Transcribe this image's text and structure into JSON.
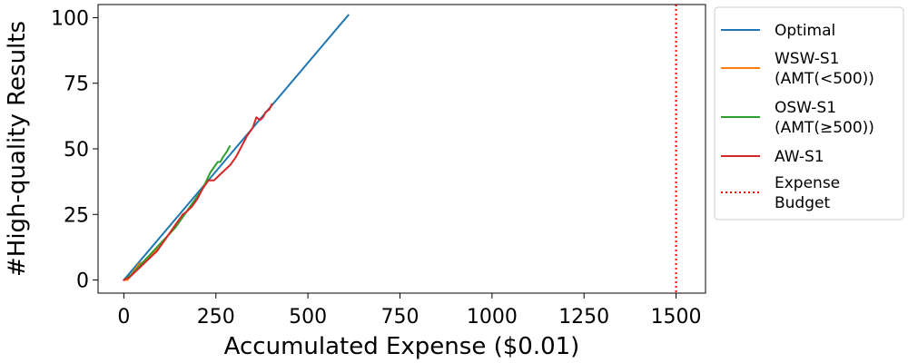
{
  "chart_data": {
    "type": "line",
    "xlabel": "Accumulated Expense ($0.01)",
    "ylabel": "#High-quality Results",
    "xlim": [
      -70,
      1580
    ],
    "ylim": [
      -5,
      105
    ],
    "xticks": [
      0,
      250,
      500,
      750,
      1000,
      1250,
      1500
    ],
    "yticks": [
      0,
      25,
      50,
      75,
      100
    ],
    "grid": false,
    "legend_position": "outside-right",
    "series": [
      {
        "name": "Optimal",
        "color": "#1f77b4",
        "style": "solid",
        "x": [
          0,
          610
        ],
        "y": [
          0,
          101
        ]
      },
      {
        "name": "WSW-S1 (AMT(<500))",
        "legend_lines": [
          "WSW-S1",
          "(AMT(<500))"
        ],
        "color": "#ff7f0e",
        "style": "solid",
        "x": [
          0,
          10,
          20,
          30,
          40,
          55,
          70,
          85,
          100,
          120,
          140,
          160,
          175,
          190
        ],
        "y": [
          0,
          0,
          2,
          4,
          6,
          7,
          9,
          11,
          13,
          17,
          20,
          24,
          27,
          29
        ]
      },
      {
        "name": "OSW-S1 (AMT(≥500))",
        "legend_lines": [
          "OSW-S1",
          "(AMT(≥500))"
        ],
        "color": "#2ca02c",
        "style": "solid",
        "x": [
          0,
          20,
          40,
          60,
          80,
          100,
          120,
          140,
          160,
          175,
          190,
          205,
          215,
          225,
          235,
          245,
          255,
          262,
          270,
          280,
          288
        ],
        "y": [
          0,
          2,
          5,
          8,
          11,
          14,
          17,
          20,
          24,
          27,
          30,
          33,
          35,
          38,
          41,
          43,
          45,
          45,
          47,
          49,
          51
        ]
      },
      {
        "name": "AW-S1",
        "color": "#d62728",
        "style": "solid",
        "x": [
          0,
          15,
          30,
          45,
          60,
          75,
          90,
          100,
          115,
          130,
          145,
          160,
          170,
          185,
          200,
          215,
          230,
          245,
          260,
          275,
          290,
          305,
          320,
          335,
          350,
          360,
          370,
          378,
          385,
          395,
          402
        ],
        "y": [
          0,
          1,
          3,
          5,
          7,
          9,
          11,
          13,
          16,
          19,
          22,
          25,
          26,
          28,
          31,
          35,
          38,
          38,
          40,
          42,
          44,
          47,
          51,
          55,
          58,
          62,
          61,
          62,
          64,
          65,
          67
        ]
      },
      {
        "name": "Expense Budget",
        "legend_lines": [
          "Expense",
          "Budget"
        ],
        "color": "#ff0000",
        "style": "dotted",
        "type": "vline",
        "x": [
          1500
        ]
      }
    ]
  }
}
